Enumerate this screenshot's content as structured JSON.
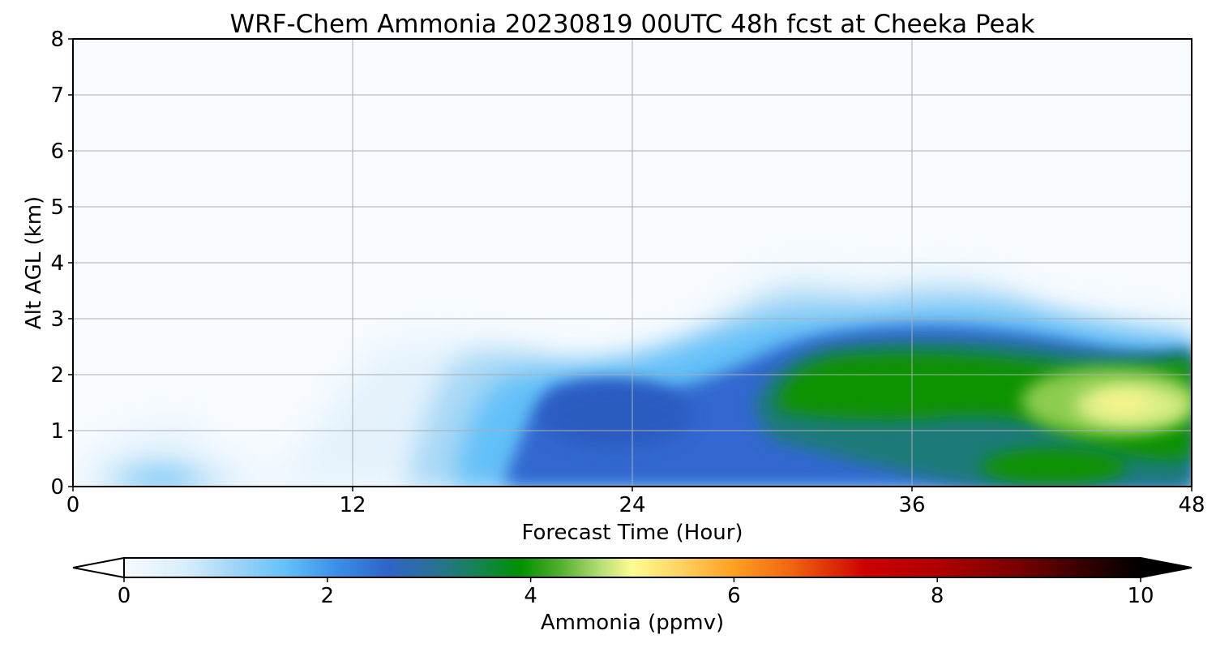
{
  "chart_data": {
    "type": "heatmap",
    "title": "WRF-Chem Ammonia  20230819 00UTC 48h fcst at Cheeka Peak",
    "xlabel": "Forecast Time (Hour)",
    "ylabel": "Alt AGL (km)",
    "xlim": [
      0,
      48
    ],
    "ylim": [
      0,
      8
    ],
    "x_ticks": [
      0,
      12,
      24,
      36,
      48
    ],
    "y_ticks": [
      0,
      1,
      2,
      3,
      4,
      5,
      6,
      7,
      8
    ],
    "grid": true,
    "colorbar": {
      "label": "Ammonia  (ppmv)",
      "range": [
        0,
        10
      ],
      "ticks": [
        0,
        2,
        4,
        6,
        8,
        10
      ],
      "extend": "both",
      "colors": [
        [
          0,
          "#f7fbff"
        ],
        [
          0.6,
          "#d8eefb"
        ],
        [
          1.1,
          "#9fd4f5"
        ],
        [
          1.6,
          "#62c0f8"
        ],
        [
          2.1,
          "#3a8ee8"
        ],
        [
          2.6,
          "#2f64c8"
        ],
        [
          3.0,
          "#2a6f9a"
        ],
        [
          3.4,
          "#1a8060"
        ],
        [
          3.9,
          "#009000"
        ],
        [
          4.3,
          "#55b030"
        ],
        [
          4.7,
          "#b8df78"
        ],
        [
          5.0,
          "#fffc90"
        ],
        [
          5.5,
          "#ffd060"
        ],
        [
          6.0,
          "#ffa020"
        ],
        [
          6.6,
          "#f06010"
        ],
        [
          7.3,
          "#cc0000"
        ],
        [
          8.0,
          "#b00000"
        ],
        [
          8.8,
          "#780000"
        ],
        [
          9.4,
          "#3a0000"
        ],
        [
          10.0,
          "#000000"
        ]
      ]
    },
    "features": [
      {
        "x": 3,
        "y": 0.25,
        "value": 1.2
      },
      {
        "x": 7,
        "y": 0.15,
        "value": 0.5
      },
      {
        "x": 13,
        "y": 0.9,
        "value": 0.45
      },
      {
        "x": 18,
        "y": 1.1,
        "value": 1.1
      },
      {
        "x": 20,
        "y": 0.2,
        "value": 1.8
      },
      {
        "x": 22,
        "y": 1.55,
        "value": 2.55
      },
      {
        "x": 24.5,
        "y": 1.05,
        "value": 2.6
      },
      {
        "x": 26,
        "y": 0.5,
        "value": 2.2
      },
      {
        "x": 29,
        "y": 1.6,
        "value": 2.5
      },
      {
        "x": 32,
        "y": 3.4,
        "value": 0.7
      },
      {
        "x": 33,
        "y": 1.7,
        "value": 3.9
      },
      {
        "x": 36,
        "y": 3.3,
        "value": 0.8
      },
      {
        "x": 37,
        "y": 1.75,
        "value": 3.9
      },
      {
        "x": 41,
        "y": 1.7,
        "value": 4.4
      },
      {
        "x": 44.5,
        "y": 1.5,
        "value": 5.0
      },
      {
        "x": 47,
        "y": 1.1,
        "value": 4.6
      },
      {
        "x": 47,
        "y": 2.1,
        "value": 3.7
      },
      {
        "x": 40,
        "y": 0.3,
        "value": 3.6
      }
    ]
  }
}
